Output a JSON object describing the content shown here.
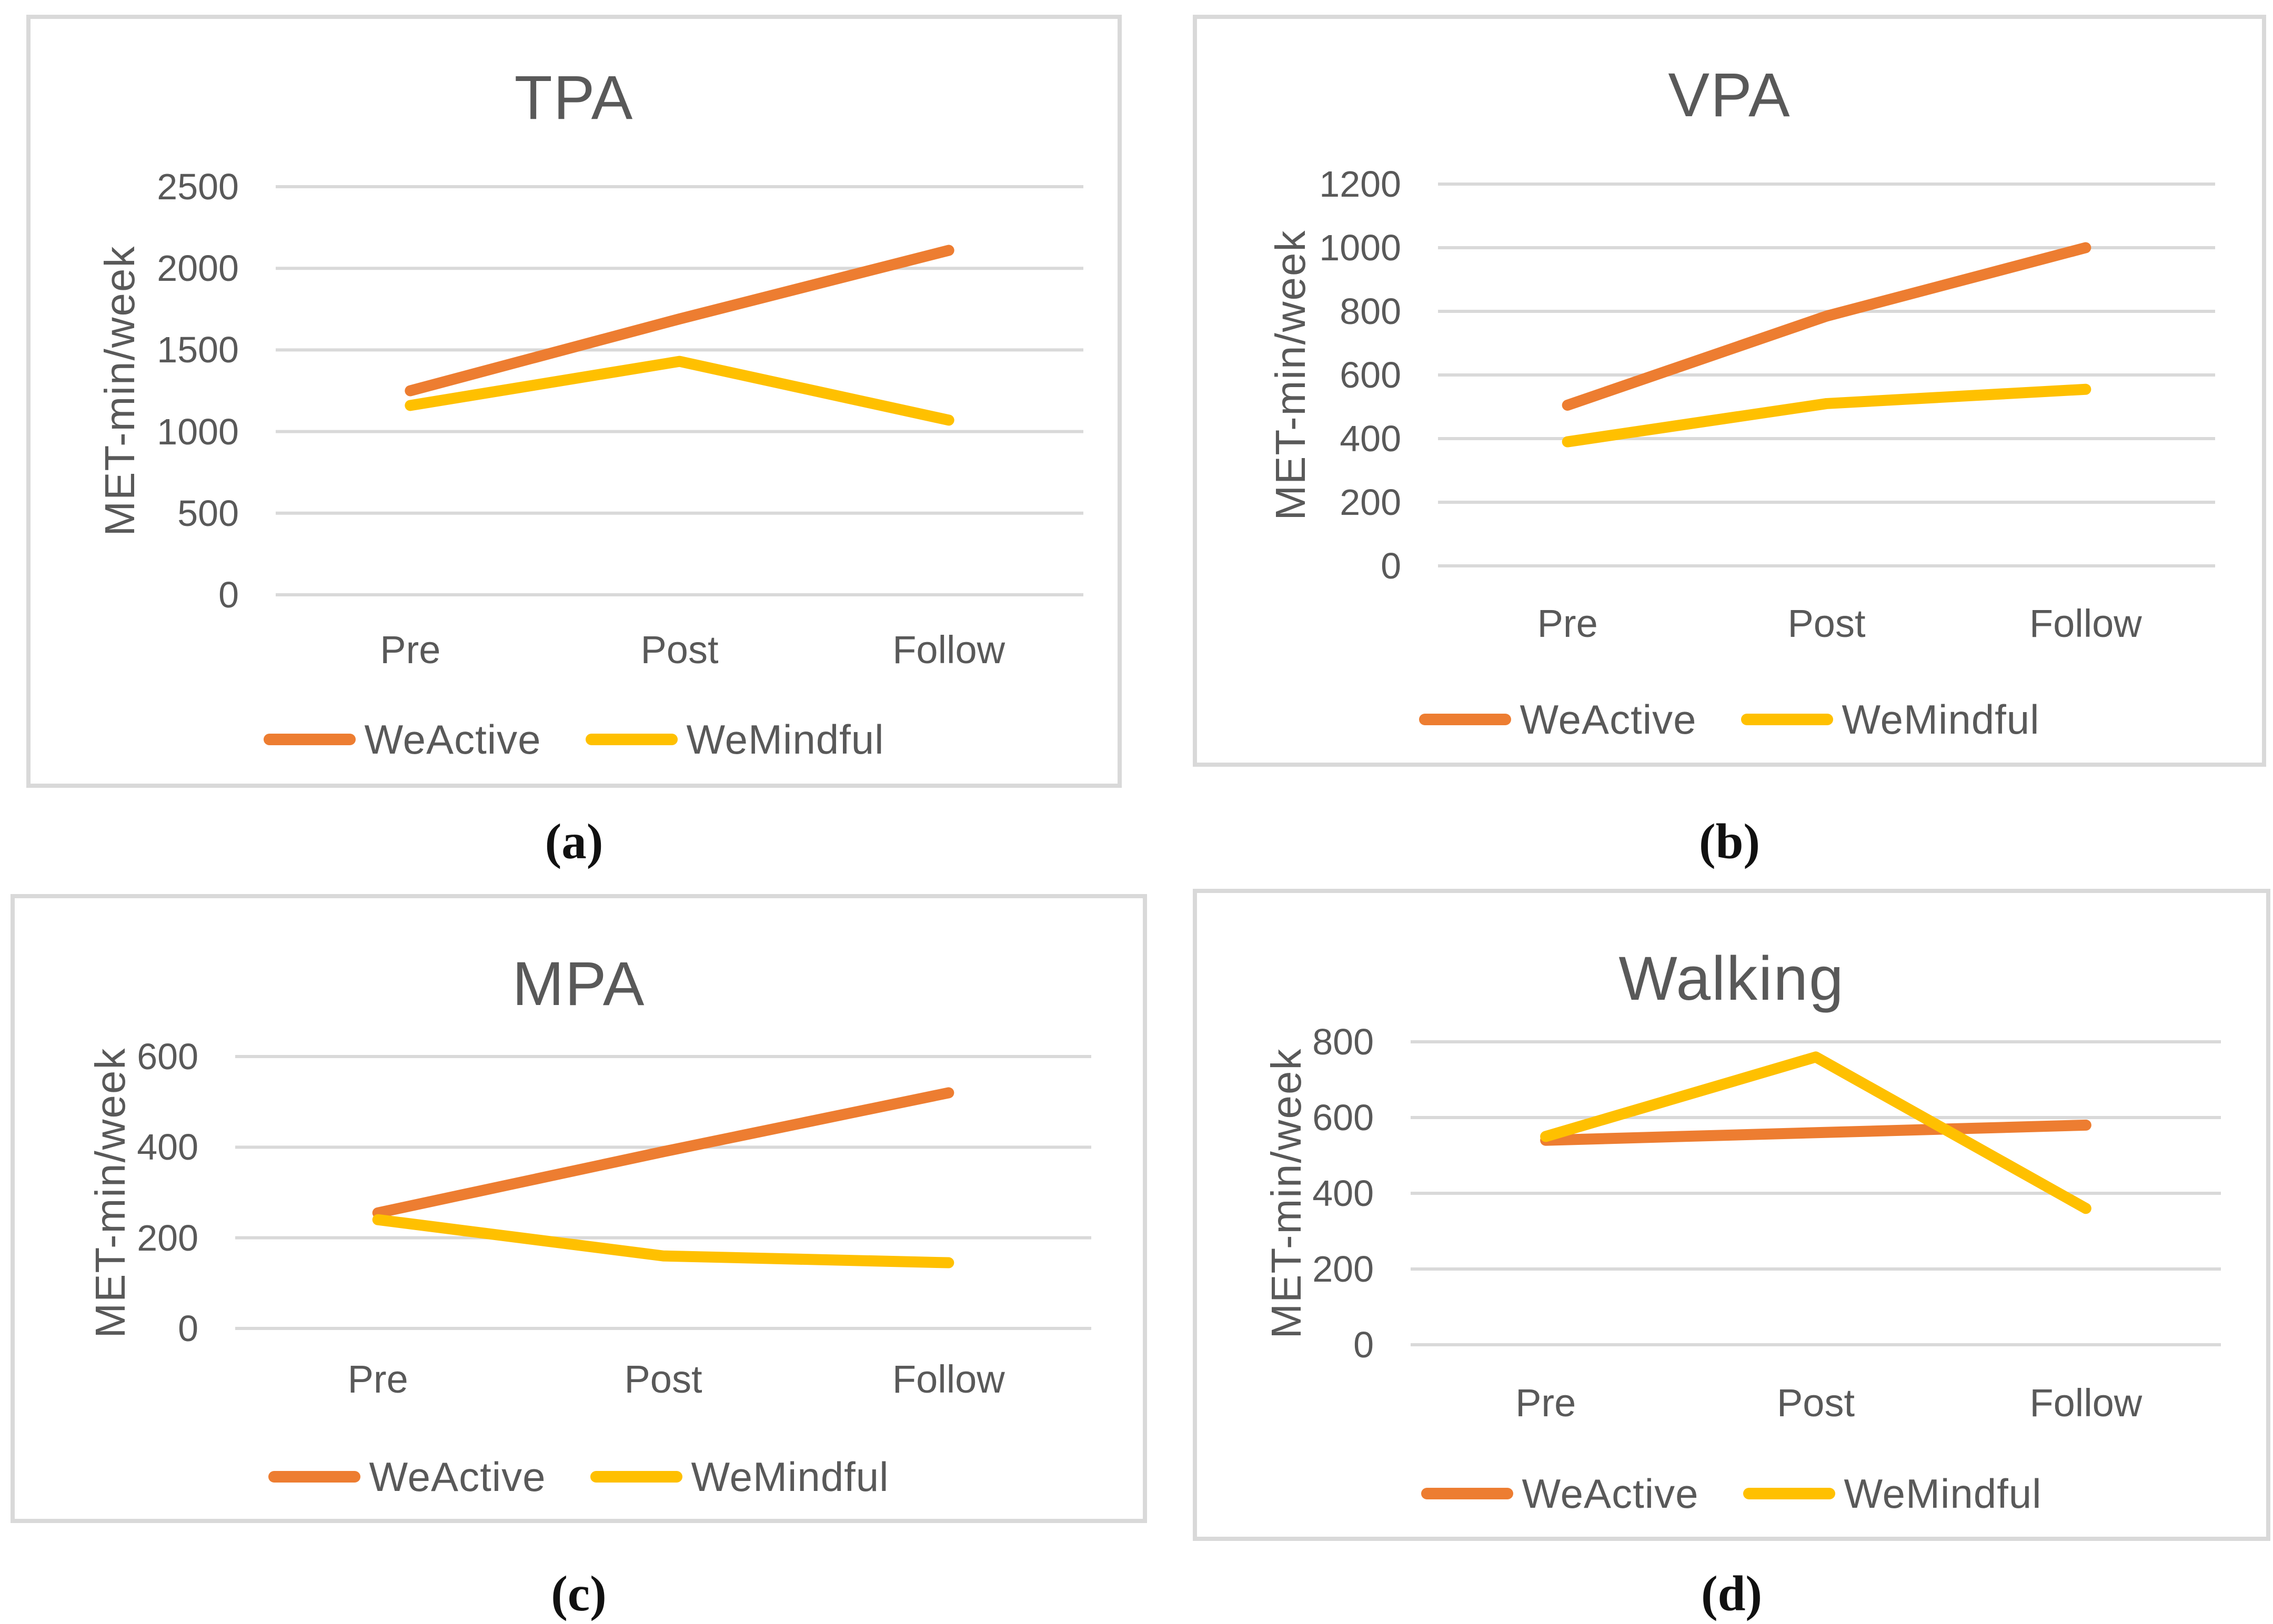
{
  "figure": {
    "captions": [
      "(a)",
      "(b)",
      "(c)",
      "(d)"
    ]
  },
  "colors": {
    "weactive": "#ED7D31",
    "wemindful": "#FFC000",
    "grid": "#D9D9D9",
    "text": "#595959",
    "border": "#D9D9D9"
  },
  "chart_data": [
    {
      "type": "line",
      "title": "TPA",
      "ylabel": "MET-min/week",
      "xlabel": "",
      "categories": [
        "Pre",
        "Post",
        "Follow"
      ],
      "yticks": [
        0,
        500,
        1000,
        1500,
        2000,
        2500
      ],
      "ylim": [
        0,
        2500
      ],
      "grid": true,
      "legend_position": "bottom",
      "series": [
        {
          "name": "WeActive",
          "color": "#ED7D31",
          "values": [
            1250,
            1690,
            2110
          ]
        },
        {
          "name": "WeMindful",
          "color": "#FFC000",
          "values": [
            1160,
            1430,
            1070
          ]
        }
      ]
    },
    {
      "type": "line",
      "title": "VPA",
      "ylabel": "MET-min/week",
      "xlabel": "",
      "categories": [
        "Pre",
        "Post",
        "Follow"
      ],
      "yticks": [
        0,
        200,
        400,
        600,
        800,
        1000,
        1200
      ],
      "ylim": [
        0,
        1200
      ],
      "grid": true,
      "legend_position": "bottom",
      "series": [
        {
          "name": "WeActive",
          "color": "#ED7D31",
          "values": [
            505,
            785,
            1000
          ]
        },
        {
          "name": "WeMindful",
          "color": "#FFC000",
          "values": [
            390,
            510,
            555
          ]
        }
      ]
    },
    {
      "type": "line",
      "title": "MPA",
      "ylabel": "MET-min/week",
      "xlabel": "",
      "categories": [
        "Pre",
        "Post",
        "Follow"
      ],
      "yticks": [
        0,
        200,
        400,
        600
      ],
      "ylim": [
        0,
        600
      ],
      "grid": true,
      "legend_position": "bottom",
      "series": [
        {
          "name": "WeActive",
          "color": "#ED7D31",
          "values": [
            255,
            390,
            520
          ]
        },
        {
          "name": "WeMindful",
          "color": "#FFC000",
          "values": [
            240,
            160,
            145
          ]
        }
      ]
    },
    {
      "type": "line",
      "title": "Walking",
      "ylabel": "MET-min/week",
      "xlabel": "",
      "categories": [
        "Pre",
        "Post",
        "Follow"
      ],
      "yticks": [
        0,
        200,
        400,
        600,
        800
      ],
      "ylim": [
        0,
        800
      ],
      "grid": true,
      "legend_position": "bottom",
      "series": [
        {
          "name": "WeActive",
          "color": "#ED7D31",
          "values": [
            540,
            560,
            580
          ]
        },
        {
          "name": "WeMindful",
          "color": "#FFC000",
          "values": [
            550,
            760,
            360
          ]
        }
      ]
    }
  ]
}
